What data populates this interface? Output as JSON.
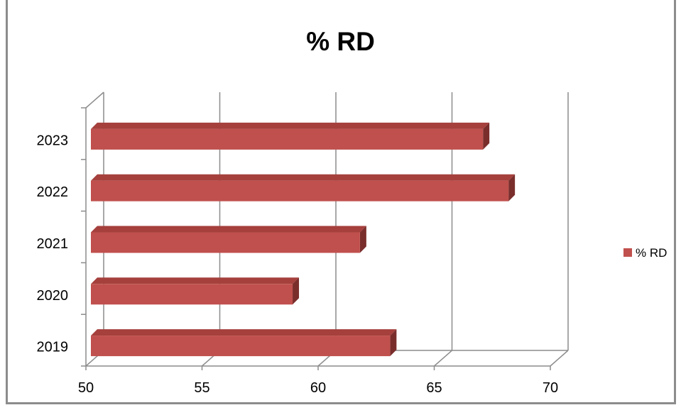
{
  "chart_data": {
    "type": "bar",
    "orientation": "horizontal",
    "three_d": true,
    "title": "% RD",
    "categories": [
      "2019",
      "2020",
      "2021",
      "2022",
      "2023"
    ],
    "series": [
      {
        "name": "% RD",
        "values": [
          63.1,
          58.9,
          61.8,
          68.2,
          67.1
        ],
        "color": "#c0504d"
      }
    ],
    "xlim": [
      50,
      70
    ],
    "xticks": [
      "50",
      "55",
      "60",
      "65",
      "70"
    ],
    "grid": true,
    "legend_position": "right"
  }
}
